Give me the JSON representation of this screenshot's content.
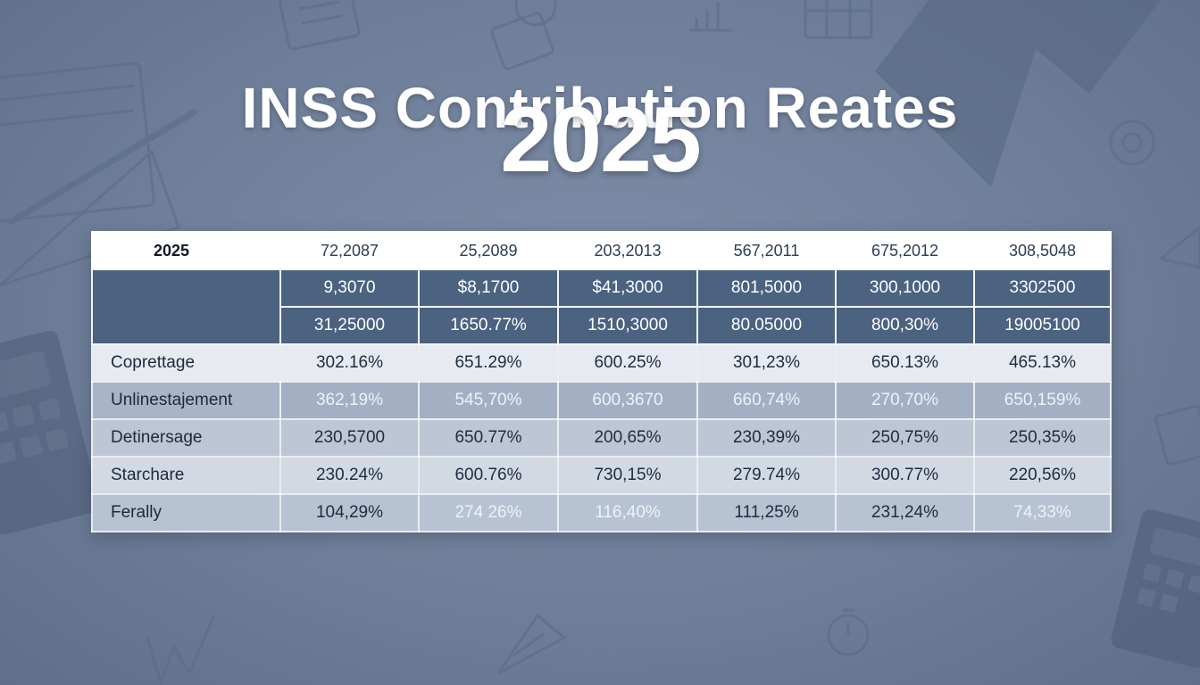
{
  "title": {
    "line1": "INSS Contribution Reates",
    "line2": "2025"
  },
  "table": {
    "header": [
      "2025",
      "72,2087",
      "25,2089",
      "203,2013",
      "567,2011",
      "675,2012",
      "308,5048"
    ],
    "dark_rows": [
      [
        "",
        "9,3070",
        "$8,1700",
        "$41,3000",
        "801,5000",
        "300,1000",
        "3302500"
      ],
      [
        "",
        "31,25000",
        "1650.77%",
        "1510,3000",
        "80.05000",
        "800,30%",
        "19005100"
      ]
    ],
    "rows": [
      {
        "label": "Coprettage",
        "values": [
          "302.16%",
          "651.29%",
          "600.25%",
          "301,23%",
          "650.13%",
          "465.13%"
        ]
      },
      {
        "label": "Unlinestajement",
        "values": [
          "362,19%",
          "545,70%",
          "600,3670",
          "660,74%",
          "270,70%",
          "650,159%"
        ]
      },
      {
        "label": "Detinersage",
        "values": [
          "230,5700",
          "650.77%",
          "200,65%",
          "230,39%",
          "250,75%",
          "250,35%"
        ]
      },
      {
        "label": "Starchare",
        "values": [
          "230.24%",
          "600.76%",
          "730,15%",
          "279.74%",
          "300.77%",
          "220,56%"
        ]
      },
      {
        "label": "Ferally",
        "values": [
          "104,29%",
          "274 26%",
          "116,40%",
          "111,25%",
          "231,24%",
          "74,33%"
        ]
      }
    ]
  },
  "icons": [
    "notebook-icon",
    "pen-icon",
    "checklist-icon",
    "lightbulb-icon",
    "bar-chart-icon",
    "calendar-icon",
    "trend-arrow-icon",
    "gear-icon",
    "calculator-icon",
    "ruler-icon",
    "line-chart-icon",
    "stopwatch-icon",
    "document-icon",
    "triangle-ruler-icon"
  ],
  "colors": {
    "background": "#6f7f9a",
    "dark_header": "#4b6280",
    "title": "#ffffff"
  }
}
